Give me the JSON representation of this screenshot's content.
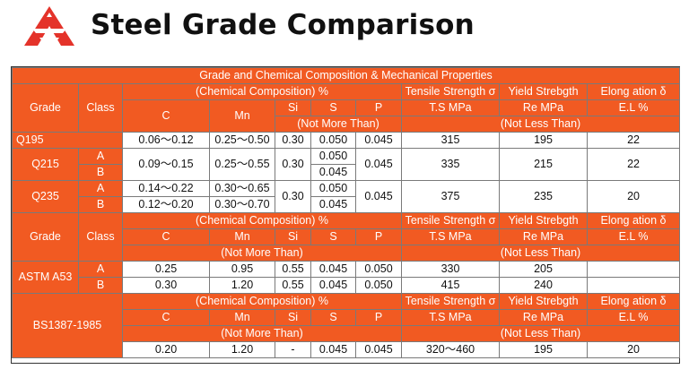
{
  "page": {
    "title": "Steel Grade Comparison"
  },
  "table": {
    "caption": "Grade and Chemical Composition & Mechanical Properties",
    "h": {
      "grade": "Grade",
      "class": "Class",
      "chem": "(Chemical Composition)  %",
      "tensile": "Tensile Strength σ",
      "yield": "Yield Strebgth",
      "elong": "Elong ation δ",
      "c": "C",
      "mn": "Mn",
      "si": "Si",
      "s": "S",
      "p": "P",
      "ts": "T.S MPa",
      "re": "Re MPa",
      "el": "E.L %",
      "nmt": "(Not More Than)",
      "nlt": "(Not Less Than)"
    },
    "q195": {
      "grade": "Q195",
      "c": "0.06～0.12",
      "mn": "0.25～0.50",
      "si": "0.30",
      "s": "0.050",
      "p": "0.045",
      "ts": "315",
      "re": "195",
      "el": "22"
    },
    "q215": {
      "grade": "Q215",
      "class_a": "A",
      "class_b": "B",
      "c": "0.09～0.15",
      "mn": "0.25～0.55",
      "si": "0.30",
      "s_a": "0.050",
      "s_b": "0.045",
      "p": "0.045",
      "ts": "335",
      "re": "215",
      "el": "22"
    },
    "q235": {
      "grade": "Q235",
      "class_a": "A",
      "class_b": "B",
      "c_a": "0.14～0.22",
      "c_b": "0.12～0.20",
      "mn_a": "0.30～0.65",
      "mn_b": "0.30～0.70",
      "si": "0.30",
      "s_a": "0.050",
      "s_b": "0.045",
      "p": "0.045",
      "ts": "375",
      "re": "235",
      "el": "20"
    },
    "astm": {
      "grade": "ASTM A53",
      "a": {
        "class": "A",
        "c": "0.25",
        "mn": "0.95",
        "si": "0.55",
        "s": "0.045",
        "p": "0.050",
        "ts": "330",
        "re": "205",
        "el": ""
      },
      "b": {
        "class": "B",
        "c": "0.30",
        "mn": "1.20",
        "si": "0.55",
        "s": "0.045",
        "p": "0.050",
        "ts": "415",
        "re": "240",
        "el": ""
      }
    },
    "bs": {
      "grade": "BS1387-1985",
      "c": "0.20",
      "mn": "1.20",
      "si": "-",
      "s": "0.045",
      "p": "0.045",
      "ts": "320～460",
      "re": "195",
      "el": "20"
    }
  }
}
